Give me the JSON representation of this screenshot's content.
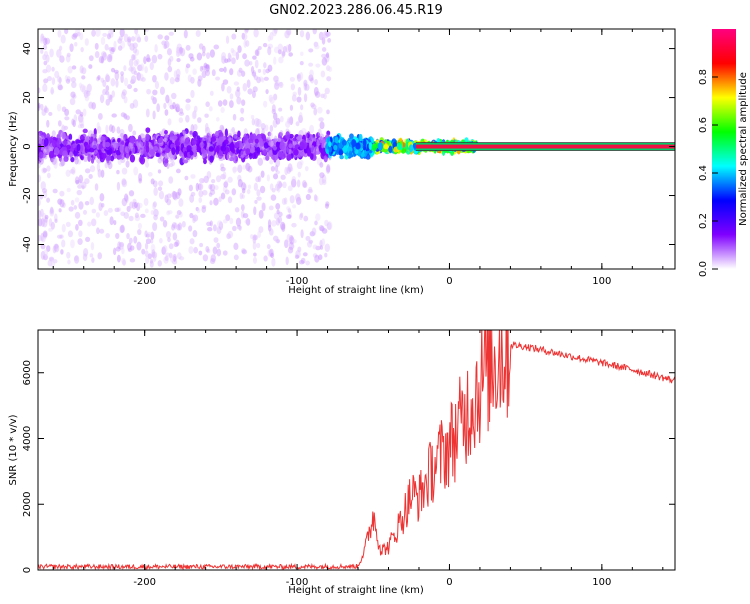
{
  "figure_title": "GN02.2023.286.06.45.R19",
  "chart_data": [
    {
      "type": "heatmap",
      "title": "",
      "xlabel": "Height of straight line (km)",
      "ylabel": "Frequency (Hz)",
      "xlim": [
        -270,
        148
      ],
      "ylim": [
        -50,
        48
      ],
      "xticks": [
        -200,
        -100,
        0,
        100
      ],
      "yticks": [
        -40,
        -20,
        0,
        20,
        40
      ],
      "colorbar": {
        "label": "Normalized spectral amplitude",
        "range": [
          0,
          1
        ],
        "ticks": [
          0.0,
          0.2,
          0.4,
          0.6,
          0.8
        ],
        "colormap": [
          "#ffffff",
          "#8000ff",
          "#0000ff",
          "#00ffff",
          "#00ff00",
          "#ffff00",
          "#ff0000",
          "#ff0080"
        ]
      },
      "regions": [
        {
          "x": [
            -270,
            -78
          ],
          "freq_spread": 48,
          "amplitude": [
            0.03,
            0.15
          ]
        },
        {
          "x": [
            -80,
            -50
          ],
          "freq_spread": 6,
          "amplitude": [
            0.3,
            0.45
          ]
        },
        {
          "x": [
            -50,
            18
          ],
          "freq_spread": 3,
          "amplitude": [
            0.3,
            0.8
          ]
        },
        {
          "x": [
            18,
            148
          ],
          "freq_spread": 1,
          "amplitude": [
            0.9,
            1.0
          ]
        }
      ],
      "grid": false
    },
    {
      "type": "line",
      "title": "",
      "xlabel": "Height of straight line (km)",
      "ylabel": "SNR (10 * v/v)",
      "xlim": [
        -270,
        148
      ],
      "ylim": [
        0,
        7300
      ],
      "xticks": [
        -200,
        -100,
        0,
        100
      ],
      "yticks": [
        0,
        2000,
        4000,
        6000
      ],
      "color": "#ee3333",
      "series": [
        {
          "x": [
            -270,
            -200,
            -100,
            -60,
            -55,
            -50,
            -45,
            -40,
            -35,
            -30,
            -25,
            -20,
            -15,
            -10,
            -5,
            0,
            5,
            10,
            15,
            20,
            25,
            30,
            35,
            40,
            50,
            60,
            80,
            100,
            120,
            148
          ],
          "values": [
            100,
            100,
            100,
            110,
            700,
            1700,
            600,
            700,
            1200,
            1700,
            2300,
            2200,
            2700,
            3200,
            3500,
            3800,
            4200,
            4700,
            5200,
            5700,
            6200,
            6500,
            6700,
            6850,
            6800,
            6700,
            6500,
            6300,
            6100,
            5750
          ]
        }
      ],
      "grid": false
    }
  ]
}
